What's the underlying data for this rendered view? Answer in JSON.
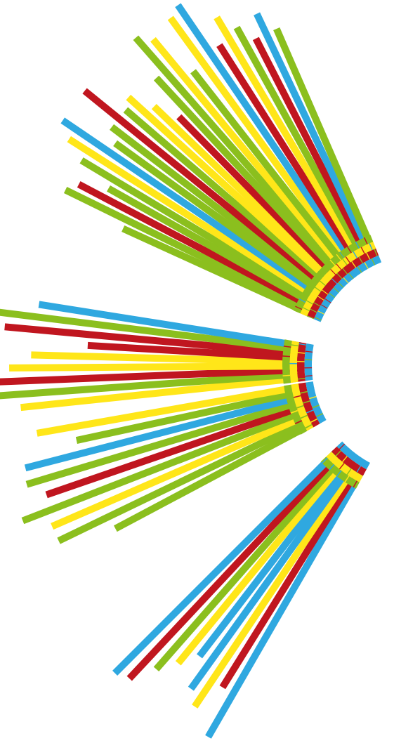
{
  "palette": {
    "yellow": "#ffe619",
    "green": "#8bbf1e",
    "red": "#c0161f",
    "blue": "#2fa8e0"
  },
  "clusters": [
    {
      "name": "cluster-1",
      "rays": [
        {
          "color": "yellow",
          "length": 0.98
        },
        {
          "color": "blue",
          "length": 1.0
        },
        {
          "color": "red",
          "length": 0.82
        },
        {
          "color": "yellow",
          "length": 0.9
        },
        {
          "color": "green",
          "length": 0.84
        },
        {
          "color": "red",
          "length": 0.78
        },
        {
          "color": "blue",
          "length": 0.85
        },
        {
          "color": "green",
          "length": 0.78
        }
      ]
    },
    {
      "name": "cluster-2",
      "rays": [
        {
          "color": "green",
          "length": 0.66
        },
        {
          "color": "green",
          "length": 0.88
        },
        {
          "color": "red",
          "length": 0.85
        },
        {
          "color": "green",
          "length": 0.76
        },
        {
          "color": "green",
          "length": 0.88
        },
        {
          "color": "yellow",
          "length": 0.95
        },
        {
          "color": "blue",
          "length": 1.0
        },
        {
          "color": "green",
          "length": 0.82
        },
        {
          "color": "green",
          "length": 0.86
        },
        {
          "color": "red",
          "length": 1.0
        },
        {
          "color": "green",
          "length": 0.86
        },
        {
          "color": "yellow",
          "length": 0.88
        },
        {
          "color": "yellow",
          "length": 0.8
        },
        {
          "color": "red",
          "length": 0.72
        },
        {
          "color": "green",
          "length": 0.86
        },
        {
          "color": "green",
          "length": 1.0
        },
        {
          "color": "yellow",
          "length": 0.96
        },
        {
          "color": "green",
          "length": 0.8
        }
      ]
    },
    {
      "name": "cluster-3",
      "rays": [
        {
          "color": "yellow",
          "length": 0.9
        },
        {
          "color": "green",
          "length": 1.0
        },
        {
          "color": "red",
          "length": 1.0
        },
        {
          "color": "yellow",
          "length": 0.93
        },
        {
          "color": "yellow",
          "length": 0.86
        },
        {
          "color": "red",
          "length": 0.68
        },
        {
          "color": "red",
          "length": 0.95
        },
        {
          "color": "green",
          "length": 1.0
        },
        {
          "color": "blue",
          "length": 0.85
        }
      ]
    },
    {
      "name": "cluster-4",
      "rays": [
        {
          "color": "green",
          "length": 0.72
        },
        {
          "color": "green",
          "length": 0.9
        },
        {
          "color": "yellow",
          "length": 0.9
        },
        {
          "color": "green",
          "length": 0.98
        },
        {
          "color": "red",
          "length": 0.88
        },
        {
          "color": "green",
          "length": 0.93
        },
        {
          "color": "blue",
          "length": 0.92
        },
        {
          "color": "green",
          "length": 0.74
        },
        {
          "color": "yellow",
          "length": 0.86
        }
      ]
    },
    {
      "name": "cluster-5",
      "rays": [
        {
          "color": "blue",
          "length": 0.98
        },
        {
          "color": "red",
          "length": 0.82
        },
        {
          "color": "yellow",
          "length": 0.92
        },
        {
          "color": "blue",
          "length": 0.88
        },
        {
          "color": "blue",
          "length": 0.78
        },
        {
          "color": "yellow",
          "length": 0.84
        },
        {
          "color": "green",
          "length": 0.9
        },
        {
          "color": "red",
          "length": 0.98
        },
        {
          "color": "blue",
          "length": 1.0
        }
      ]
    }
  ]
}
